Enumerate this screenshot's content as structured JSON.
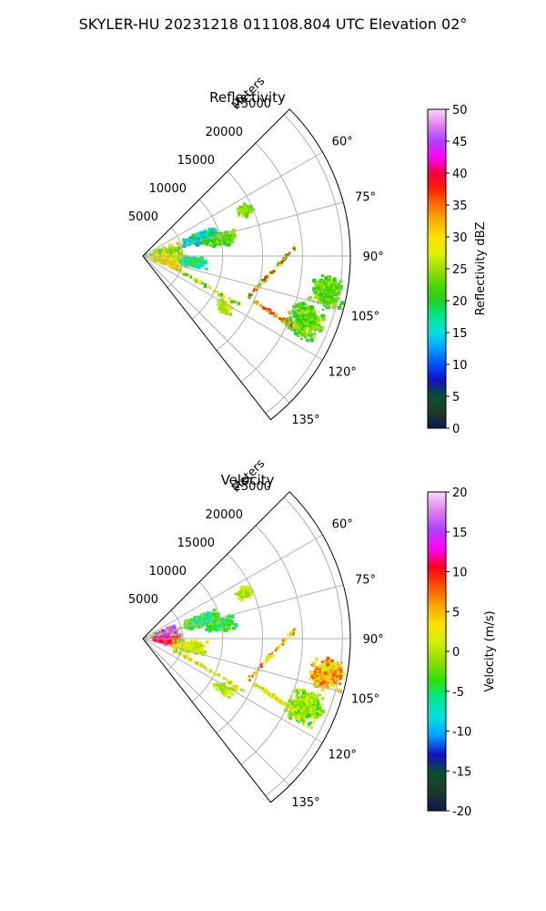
{
  "suptitle": "SKYLER-HU  20231218  011108.804 UTC Elevation 02°",
  "chart_data": [
    {
      "type": "heatmap",
      "title": "Reflectivity",
      "projection": "polar sector",
      "range_label": "Meters",
      "range_ticks": [
        5000,
        10000,
        15000,
        20000,
        25000
      ],
      "range_max": 26000,
      "azimuth_ticks": [
        "60°",
        "75°",
        "90°",
        "105°",
        "120°",
        "135°"
      ],
      "azimuth_range": [
        45,
        142
      ],
      "colorbar": {
        "label": "Reflectivity dBZ",
        "ticks": [
          0,
          5,
          10,
          15,
          20,
          25,
          30,
          35,
          40,
          45,
          50
        ],
        "range": [
          0,
          50
        ]
      }
    },
    {
      "type": "heatmap",
      "title": "Velocity",
      "projection": "polar sector",
      "range_label": "Meters",
      "range_ticks": [
        5000,
        10000,
        15000,
        20000,
        25000
      ],
      "range_max": 26000,
      "azimuth_ticks": [
        "60°",
        "75°",
        "90°",
        "105°",
        "120°",
        "135°"
      ],
      "azimuth_range": [
        45,
        142
      ],
      "colorbar": {
        "label": "Velocity (m/s)",
        "ticks": [
          -20,
          -15,
          -10,
          -5,
          0,
          5,
          10,
          15,
          20
        ],
        "range": [
          -20,
          20
        ]
      }
    }
  ],
  "colors": {
    "reflectivity_scale": [
      "#0a1a4a",
      "#1e3a2a",
      "#0c5030",
      "#1010c0",
      "#0050ff",
      "#00a0ff",
      "#00e0e0",
      "#00e890",
      "#20d020",
      "#50d800",
      "#a0e000",
      "#e0f000",
      "#ffe000",
      "#ffb000",
      "#ff7000",
      "#ff2000",
      "#f00040",
      "#ff00ff",
      "#b040ff",
      "#e080f0",
      "#f8d8f8"
    ],
    "velocity_scale": [
      "#0a1a4a",
      "#1e3a2a",
      "#0c5030",
      "#1010c0",
      "#00a0ff",
      "#00e0e0",
      "#00e890",
      "#30e000",
      "#90e000",
      "#d0f000",
      "#ffe000",
      "#ffa000",
      "#ff5000",
      "#ff0020",
      "#ff00ff",
      "#b040ff",
      "#e080f0",
      "#f8d8f8"
    ],
    "grid": "#b0b0b0"
  }
}
